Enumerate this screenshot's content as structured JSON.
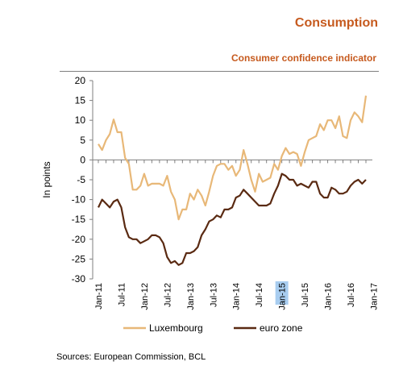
{
  "header": {
    "title": "Consumption",
    "subtitle": "Consumer confidence indicator"
  },
  "footer": {
    "source": "Sources: European Commission, BCL"
  },
  "colors": {
    "title": "#c65a1e",
    "luxembourg": "#e8b878",
    "euro_zone": "#5a2a12",
    "highlight": "#a8cdf0"
  },
  "chart_data": {
    "type": "line",
    "ylabel": "In points",
    "ylim": [
      -30,
      20
    ],
    "yticks": [
      20,
      15,
      10,
      5,
      0,
      -5,
      -10,
      -15,
      -20,
      -25,
      -30
    ],
    "grid": false,
    "legend_position": "bottom",
    "x_start": "2011-01",
    "x_tick_labels": [
      "Jan-11",
      "Jul-11",
      "Jan-12",
      "Jul-12",
      "Jan-13",
      "Jul-13",
      "Jan-14",
      "Jul-14",
      "Jan-15",
      "Jul-15",
      "Jan-16",
      "Jul-16",
      "Jan-17"
    ],
    "highlighted_tick": "Jan-15",
    "series": [
      {
        "name": "Luxembourg",
        "color": "#e8b878",
        "values": [
          4,
          2.5,
          5,
          6.5,
          10.2,
          7,
          7,
          0.5,
          -1,
          -7.5,
          -7.5,
          -6.5,
          -3.5,
          -6.5,
          -6,
          -6,
          -6,
          -6.5,
          -4,
          -8,
          -10,
          -15,
          -12.5,
          -12.5,
          -8.5,
          -10,
          -7.5,
          -9,
          -11.5,
          -8,
          -4,
          -1.5,
          -1,
          -1,
          -2.5,
          -1.5,
          -4,
          -2.5,
          2.5,
          -1,
          -5,
          -8,
          -3.5,
          -5.5,
          -5,
          -4.5,
          -1,
          -2.5,
          1,
          3,
          1.5,
          2,
          1.5,
          -1.5,
          2,
          5,
          5.5,
          6,
          9,
          7.5,
          10,
          10,
          8,
          11,
          6,
          5.5,
          10,
          12,
          11,
          9.5,
          16.2
        ]
      },
      {
        "name": "euro zone",
        "color": "#5a2a12",
        "values": [
          -12,
          -10,
          -11,
          -12,
          -10.5,
          -10,
          -12,
          -17,
          -19.5,
          -20,
          -20,
          -21,
          -20.5,
          -20,
          -19,
          -19,
          -19.5,
          -21,
          -24.5,
          -26,
          -25.5,
          -26.5,
          -26,
          -23.5,
          -23.5,
          -23,
          -22,
          -19,
          -17.5,
          -15.5,
          -15,
          -14,
          -14.5,
          -12.5,
          -12.5,
          -12,
          -9.5,
          -9,
          -7.5,
          -8.5,
          -9.5,
          -10.5,
          -11.5,
          -11.5,
          -11.5,
          -11,
          -8.5,
          -6.5,
          -3.5,
          -4,
          -5,
          -5,
          -6.5,
          -6,
          -6.5,
          -7,
          -5.5,
          -5.5,
          -8.5,
          -9.5,
          -9.5,
          -7,
          -7.5,
          -8.5,
          -8.5,
          -8,
          -6.5,
          -5.5,
          -5,
          -6,
          -5
        ]
      }
    ]
  }
}
